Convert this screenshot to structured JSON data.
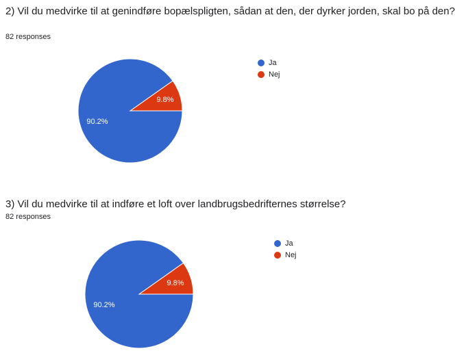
{
  "colors": {
    "ja": "#3366cc",
    "nej": "#dc3912"
  },
  "questions": [
    {
      "title": "2) Vil du medvirke til at genindføre bopælspligten, sådan at den, der dyrker jorden, skal bo på den?",
      "responses": "82 responses"
    },
    {
      "title": "3) Vil du medvirke til at indføre et loft over landbrugsbedrifternes størrelse?",
      "responses": "82 responses"
    }
  ],
  "chart_data": [
    {
      "type": "pie",
      "categories": [
        "Ja",
        "Nej"
      ],
      "values": [
        90.2,
        9.8
      ],
      "labels": [
        "90.2%",
        "9.8%"
      ],
      "legend_position": "right"
    },
    {
      "type": "pie",
      "categories": [
        "Ja",
        "Nej"
      ],
      "values": [
        90.2,
        9.8
      ],
      "labels": [
        "90.2%",
        "9.8%"
      ],
      "legend_position": "right"
    }
  ]
}
